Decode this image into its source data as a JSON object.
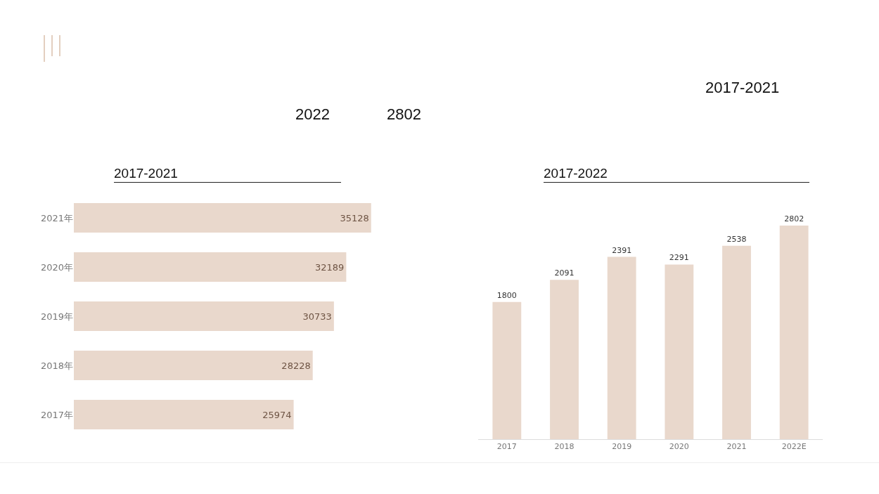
{
  "chart_data": [
    {
      "type": "bar",
      "title": "2017-2021",
      "orientation": "horizontal",
      "categories": [
        "2021年",
        "2020年",
        "2019年",
        "2018年",
        "2017年"
      ],
      "values": [
        35128,
        32189,
        30733,
        28228,
        25974
      ],
      "color": "#e9d8cc",
      "tick_labels": "y",
      "data_labels": true,
      "annotations": [
        "2017-2021",
        "2022",
        "2802"
      ]
    },
    {
      "type": "bar",
      "title": "2017-2022",
      "categories": [
        "2017",
        "2018",
        "2019",
        "2020",
        "2021",
        "2022E"
      ],
      "values": [
        1800,
        2091,
        2391,
        2291,
        2538,
        2802
      ],
      "color": "#e9d8cc",
      "tick_labels": "x",
      "data_labels": true
    }
  ]
}
